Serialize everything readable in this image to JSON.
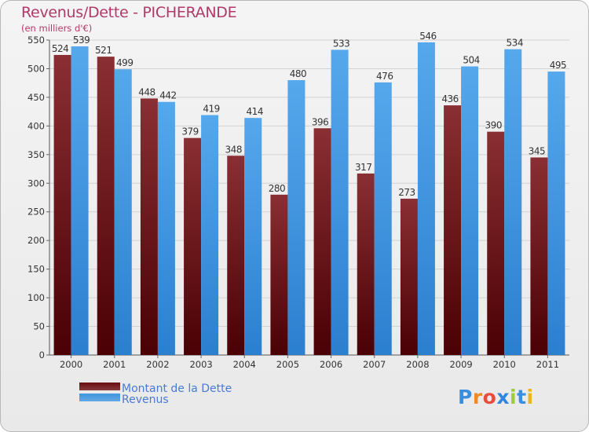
{
  "header": {
    "title": "Revenus/Dette - PICHERANDE",
    "subtitle": "(en milliers d'€)"
  },
  "chart_data": {
    "type": "bar",
    "categories": [
      "2000",
      "2001",
      "2002",
      "2003",
      "2004",
      "2005",
      "2006",
      "2007",
      "2008",
      "2009",
      "2010",
      "2011"
    ],
    "series": [
      {
        "name": "Montant de la Dette",
        "color": "#7a1f25",
        "values": [
          524,
          521,
          448,
          379,
          348,
          280,
          396,
          317,
          273,
          436,
          390,
          345
        ]
      },
      {
        "name": "Revenus",
        "color": "#4a9fe6",
        "values": [
          539,
          499,
          442,
          419,
          414,
          480,
          533,
          476,
          546,
          504,
          534,
          495
        ]
      }
    ],
    "ylim": [
      0,
      550
    ],
    "yticks": [
      0,
      50,
      100,
      150,
      200,
      250,
      300,
      350,
      400,
      450,
      500,
      550
    ],
    "grid": true,
    "legend_position": "bottom-left"
  },
  "legend": {
    "items": [
      {
        "label": "Montant de la Dette",
        "color": "#6b0d12"
      },
      {
        "label": "Revenus",
        "color": "#3f96e0"
      }
    ]
  },
  "logo": {
    "letters": [
      "P",
      "r",
      "o",
      "x",
      "i",
      "t",
      "i"
    ]
  }
}
